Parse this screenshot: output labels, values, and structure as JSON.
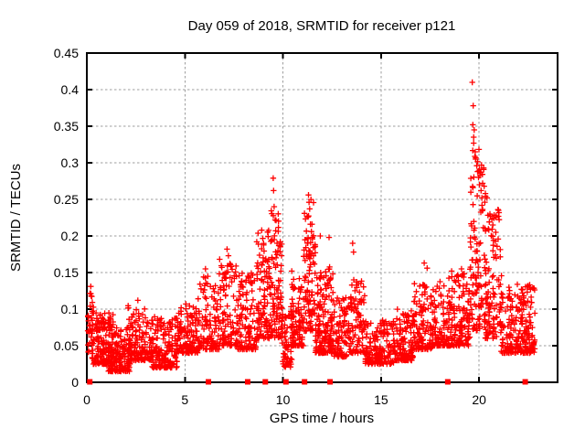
{
  "chart_data": {
    "type": "scatter",
    "title": "Day 059 of 2018, SRMTID for receiver p121",
    "xlabel": "GPS time / hours",
    "ylabel": "SRMTID / TECUs",
    "xlim": [
      0,
      24
    ],
    "ylim": [
      0,
      0.45
    ],
    "xtick_values": [
      0,
      5,
      10,
      15,
      20
    ],
    "xtick_labels": [
      "0",
      "5",
      "10",
      "15",
      "20"
    ],
    "ytick_values": [
      0,
      0.05,
      0.1,
      0.15,
      0.2,
      0.25,
      0.3,
      0.35,
      0.4,
      0.45
    ],
    "ytick_labels": [
      "0",
      "0.05",
      "0.1",
      "0.15",
      "0.2",
      "0.25",
      "0.3",
      "0.35",
      "0.4",
      "0.45"
    ],
    "grid": true,
    "grid_color": "#9e9e9e",
    "frame_color": "#000000",
    "marker": "plus",
    "marker_color": "#ff0000",
    "seed": 20180059,
    "series_name": "SRMTID",
    "bands": [
      {
        "x": [
          0.05,
          0.35
        ],
        "n": 30,
        "lo": 0.04,
        "hi": 0.125,
        "p": 1.3
      },
      {
        "x": [
          0.25,
          1.35
        ],
        "n": 170,
        "lo": 0.025,
        "hi": 0.095,
        "p": 2.2
      },
      {
        "x": [
          1.1,
          2.2
        ],
        "n": 150,
        "lo": 0.015,
        "hi": 0.075,
        "p": 2.0
      },
      {
        "x": [
          2.1,
          3.35
        ],
        "n": 160,
        "lo": 0.03,
        "hi": 0.105,
        "p": 2.2
      },
      {
        "x": [
          3.3,
          4.6
        ],
        "n": 160,
        "lo": 0.02,
        "hi": 0.09,
        "p": 2.1
      },
      {
        "x": [
          4.55,
          5.65
        ],
        "n": 130,
        "lo": 0.04,
        "hi": 0.105,
        "p": 2.2
      },
      {
        "x": [
          5.65,
          6.75
        ],
        "n": 120,
        "lo": 0.045,
        "hi": 0.145,
        "p": 2.2
      },
      {
        "x": [
          6.75,
          7.65
        ],
        "n": 100,
        "lo": 0.05,
        "hi": 0.17,
        "p": 2.2
      },
      {
        "x": [
          7.65,
          8.65
        ],
        "n": 115,
        "lo": 0.045,
        "hi": 0.15,
        "p": 2.2
      },
      {
        "x": [
          8.65,
          9.45
        ],
        "n": 115,
        "lo": 0.06,
        "hi": 0.21,
        "p": 1.9
      },
      {
        "x": [
          9.4,
          9.95
        ],
        "n": 85,
        "lo": 0.06,
        "hi": 0.235,
        "p": 1.7
      },
      {
        "x": [
          9.95,
          10.45
        ],
        "n": 60,
        "lo": 0.02,
        "hi": 0.1,
        "p": 1.8
      },
      {
        "x": [
          10.4,
          11.05
        ],
        "n": 100,
        "lo": 0.05,
        "hi": 0.145,
        "p": 2.1
      },
      {
        "x": [
          11.05,
          11.65
        ],
        "n": 95,
        "lo": 0.07,
        "hi": 0.25,
        "p": 1.6
      },
      {
        "x": [
          11.65,
          12.15
        ],
        "n": 90,
        "lo": 0.04,
        "hi": 0.15,
        "p": 2.0
      },
      {
        "x": [
          12.15,
          12.55
        ],
        "n": 70,
        "lo": 0.04,
        "hi": 0.16,
        "p": 1.9
      },
      {
        "x": [
          12.55,
          13.25
        ],
        "n": 90,
        "lo": 0.035,
        "hi": 0.12,
        "p": 2.0
      },
      {
        "x": [
          13.25,
          14.2
        ],
        "n": 110,
        "lo": 0.04,
        "hi": 0.14,
        "p": 2.2
      },
      {
        "x": [
          14.2,
          15.65
        ],
        "n": 160,
        "lo": 0.025,
        "hi": 0.085,
        "p": 2.0
      },
      {
        "x": [
          15.65,
          16.65
        ],
        "n": 130,
        "lo": 0.03,
        "hi": 0.1,
        "p": 2.2
      },
      {
        "x": [
          16.65,
          17.65
        ],
        "n": 120,
        "lo": 0.045,
        "hi": 0.135,
        "p": 2.2
      },
      {
        "x": [
          17.65,
          18.75
        ],
        "n": 130,
        "lo": 0.05,
        "hi": 0.145,
        "p": 2.2
      },
      {
        "x": [
          18.75,
          19.55
        ],
        "n": 100,
        "lo": 0.05,
        "hi": 0.155,
        "p": 2.0
      },
      {
        "x": [
          19.55,
          20.35
        ],
        "n": 115,
        "lo": 0.07,
        "hi": 0.33,
        "p": 1.6
      },
      {
        "x": [
          20.3,
          21.15
        ],
        "n": 110,
        "lo": 0.06,
        "hi": 0.24,
        "p": 1.8
      },
      {
        "x": [
          21.1,
          21.95
        ],
        "n": 95,
        "lo": 0.04,
        "hi": 0.13,
        "p": 2.0
      },
      {
        "x": [
          21.95,
          22.85
        ],
        "n": 115,
        "lo": 0.04,
        "hi": 0.135,
        "p": 1.9
      }
    ],
    "outliers": [
      [
        0.2,
        0.131
      ],
      [
        0.22,
        0.118
      ],
      [
        2.6,
        0.112
      ],
      [
        5.05,
        0.107
      ],
      [
        6.05,
        0.155
      ],
      [
        6.3,
        0.131
      ],
      [
        6.5,
        0.124
      ],
      [
        7.15,
        0.182
      ],
      [
        7.22,
        0.173
      ],
      [
        8.2,
        0.145
      ],
      [
        9.05,
        0.152
      ],
      [
        9.2,
        0.165
      ],
      [
        9.5,
        0.279
      ],
      [
        9.52,
        0.262
      ],
      [
        9.55,
        0.24
      ],
      [
        9.6,
        0.222
      ],
      [
        9.63,
        0.207
      ],
      [
        9.45,
        0.195
      ],
      [
        9.7,
        0.19
      ],
      [
        10.45,
        0.152
      ],
      [
        11.3,
        0.256
      ],
      [
        11.33,
        0.246
      ],
      [
        11.36,
        0.237
      ],
      [
        11.28,
        0.226
      ],
      [
        11.4,
        0.216
      ],
      [
        11.45,
        0.206
      ],
      [
        11.5,
        0.196
      ],
      [
        11.9,
        0.2
      ],
      [
        12.35,
        0.198
      ],
      [
        13.55,
        0.19
      ],
      [
        13.6,
        0.178
      ],
      [
        17.2,
        0.163
      ],
      [
        17.35,
        0.156
      ],
      [
        18.6,
        0.152
      ],
      [
        19.1,
        0.155
      ],
      [
        19.65,
        0.41
      ],
      [
        19.7,
        0.378
      ],
      [
        19.68,
        0.352
      ],
      [
        19.75,
        0.345
      ],
      [
        19.72,
        0.335
      ],
      [
        19.8,
        0.315
      ],
      [
        19.82,
        0.305
      ],
      [
        19.88,
        0.296
      ],
      [
        19.92,
        0.288
      ],
      [
        19.97,
        0.28
      ],
      [
        20.02,
        0.27
      ],
      [
        20.1,
        0.262
      ],
      [
        20.18,
        0.272
      ],
      [
        20.26,
        0.268
      ],
      [
        20.32,
        0.258
      ],
      [
        20.4,
        0.252
      ],
      [
        20.55,
        0.23
      ],
      [
        20.7,
        0.215
      ],
      [
        20.85,
        0.205
      ],
      [
        22.5,
        0.132
      ],
      [
        22.62,
        0.127
      ]
    ],
    "zero_marker_hours": [
      0.15,
      6.2,
      8.2,
      9.1,
      10.15,
      11.1,
      12.4,
      18.4,
      22.35
    ]
  }
}
